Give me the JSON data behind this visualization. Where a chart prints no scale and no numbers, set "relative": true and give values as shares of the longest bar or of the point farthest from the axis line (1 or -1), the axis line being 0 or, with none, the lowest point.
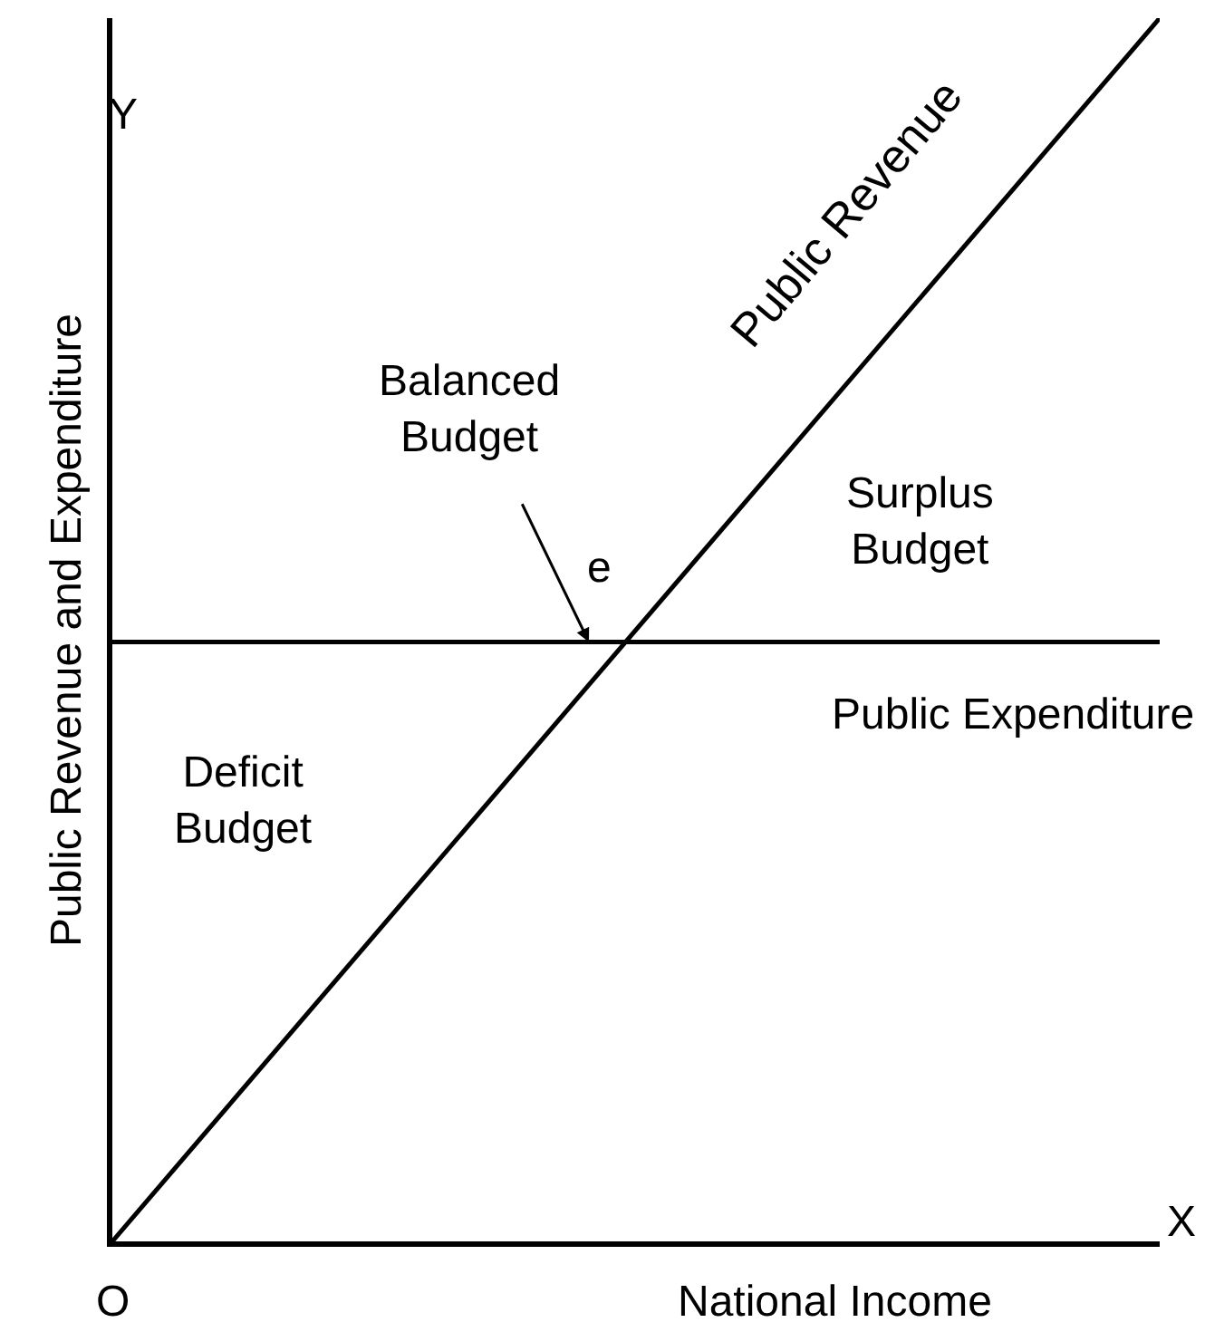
{
  "chart_data": {
    "type": "line",
    "relative": true,
    "categories": [
      null,
      null
    ],
    "xlabel": "National Income",
    "ylabel": "Public Revenue and Expenditure",
    "series": [
      {
        "name": "Public Revenue",
        "color": "#000000",
        "values": [
          0,
          1
        ]
      },
      {
        "name": "Public Expenditure",
        "color": "#000000",
        "values": [
          0.49,
          0.49
        ]
      }
    ],
    "annotations": [
      "Y",
      "X",
      "O",
      "Balanced\nBudget",
      "e",
      "Surplus\nBudget",
      "Deficit\nBudget"
    ],
    "legend": false,
    "marker": "none",
    "line_style": "solid"
  }
}
